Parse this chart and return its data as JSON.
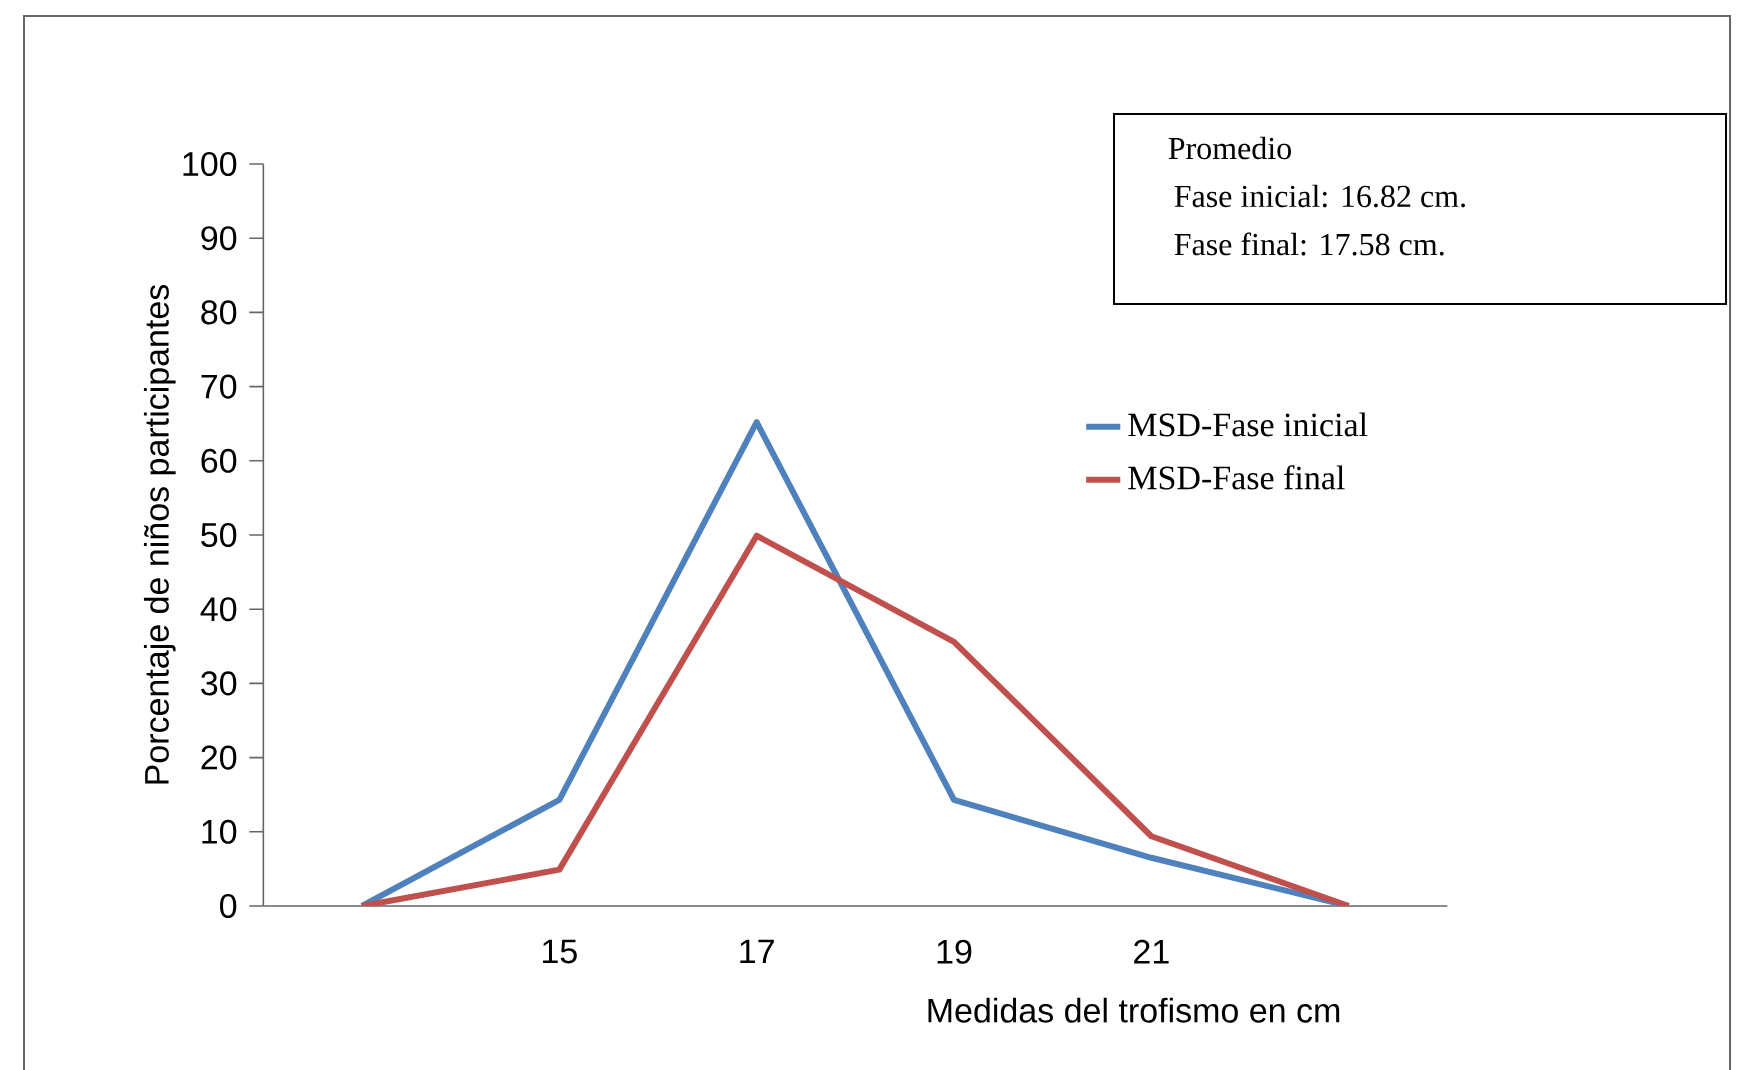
{
  "chart_data": {
    "type": "line",
    "categories": [
      null,
      "15",
      "17",
      "19",
      "21",
      null
    ],
    "series": [
      {
        "name": "MSD-Fase inicial",
        "color": "#4f81bd",
        "values": [
          0,
          14.3,
          65.2,
          14.3,
          6.5,
          0
        ]
      },
      {
        "name": "MSD-Fase final",
        "color": "#c0504d",
        "values": [
          0,
          4.9,
          49.9,
          35.6,
          9.4,
          0
        ]
      }
    ],
    "xlabel": "Medidas del trofismo  en cm",
    "ylabel": "Porcentaje de  niños participantes",
    "ylim": [
      0,
      100
    ],
    "yticks": [
      0,
      10,
      20,
      30,
      40,
      50,
      60,
      70,
      80,
      90,
      100
    ],
    "legend": "right",
    "grid": false,
    "marker": "none",
    "line_style": "solid",
    "annotations": [
      "Promedio",
      "Fase inicial: 16.82 cm.",
      "Fase final: 17.58 cm."
    ]
  }
}
